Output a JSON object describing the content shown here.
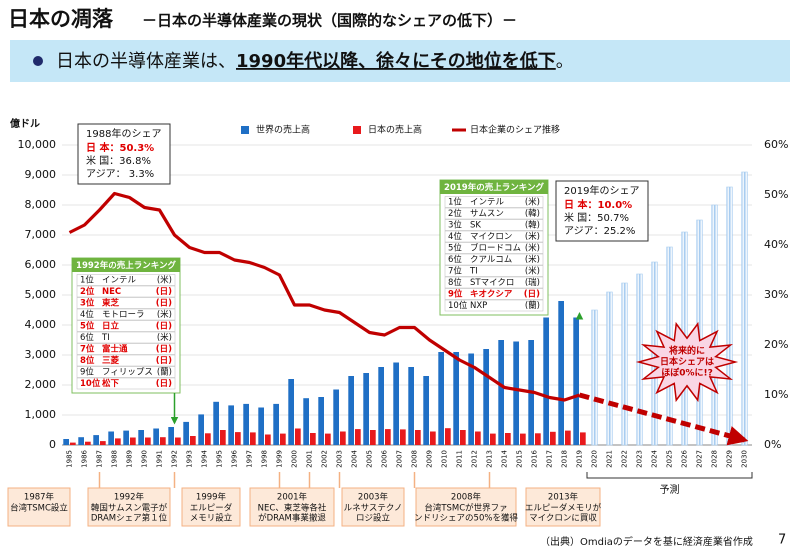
{
  "header": {
    "title": "日本の凋落",
    "subtitle": "－日本の半導体産業の現状（国際的なシェアの低下）－"
  },
  "headline": {
    "pre": "日本の半導体産業は、",
    "emphasis": "1990年代以降、徐々にその地位を低下",
    "post": "。"
  },
  "chart_data": {
    "type": "bar",
    "y_label": "億ドル",
    "categories": [
      "1985",
      "1986",
      "1987",
      "1988",
      "1989",
      "1990",
      "1991",
      "1992",
      "1993",
      "1994",
      "1995",
      "1996",
      "1997",
      "1998",
      "1999",
      "2000",
      "2001",
      "2002",
      "2003",
      "2004",
      "2005",
      "2006",
      "2007",
      "2008",
      "2009",
      "2010",
      "2011",
      "2012",
      "2013",
      "2014",
      "2015",
      "2016",
      "2017",
      "2018",
      "2019",
      "2020",
      "2021",
      "2022",
      "2023",
      "2024",
      "2025",
      "2026",
      "2027",
      "2028",
      "2029",
      "2030"
    ],
    "series": [
      {
        "name": "世界の売上高",
        "color": "#1f6fc5",
        "values": [
          200,
          260,
          330,
          450,
          480,
          500,
          550,
          600,
          770,
          1020,
          1440,
          1320,
          1370,
          1250,
          1370,
          2200,
          1560,
          1600,
          1850,
          2300,
          2400,
          2600,
          2750,
          2600,
          2300,
          3100,
          3100,
          3050,
          3200,
          3500,
          3450,
          3500,
          4250,
          4800,
          4250,
          4500,
          5100,
          5400,
          5700,
          6100,
          6600,
          7100,
          7500,
          8000,
          8600,
          9100
        ]
      },
      {
        "name": "日本の売上高",
        "color": "#e8191c",
        "values": [
          80,
          110,
          130,
          220,
          250,
          250,
          260,
          250,
          300,
          390,
          500,
          430,
          420,
          350,
          380,
          550,
          400,
          380,
          450,
          530,
          500,
          530,
          520,
          500,
          450,
          560,
          500,
          450,
          380,
          400,
          380,
          390,
          440,
          480,
          420,
          null,
          null,
          null,
          null,
          null,
          null,
          null,
          null,
          null,
          null,
          null
        ]
      },
      {
        "name": "日本企業のシェア推移",
        "type": "line",
        "axis": "y2",
        "color": "#c00000",
        "values": [
          42.5,
          44,
          47,
          50.3,
          49.5,
          47.5,
          47,
          42,
          39.5,
          38.5,
          38.5,
          37,
          36.5,
          35.5,
          34,
          28,
          28,
          27,
          26.5,
          24.5,
          22.5,
          22,
          23.5,
          23.5,
          21,
          19,
          17,
          15.5,
          13.5,
          11.5,
          11,
          10.5,
          9.5,
          9,
          10,
          null,
          null,
          null,
          null,
          null,
          null,
          null,
          null,
          null,
          null,
          null
        ]
      }
    ],
    "forecast": {
      "label": "予測",
      "from": "2020",
      "to": "2030",
      "color": "#a9cdf0"
    },
    "forecast_line": {
      "x": [
        "2019",
        "2030"
      ],
      "values": [
        10,
        1
      ],
      "color": "#c00000"
    },
    "ylim": [
      0,
      10000
    ],
    "yticks": [
      0,
      {
        "value": 1000,
        "label": "1,000"
      },
      {
        "value": 2000,
        "label": "2,000"
      },
      {
        "value": 3000,
        "label": "3,000"
      },
      {
        "value": 4000,
        "label": "4,000"
      },
      {
        "value": 5000,
        "label": "5,000"
      },
      {
        "value": 6000,
        "label": "6,000"
      },
      {
        "value": 7000,
        "label": "7,000"
      },
      {
        "value": 8000,
        "label": "8,000"
      },
      {
        "value": 9000,
        "label": "9,000"
      },
      {
        "value": 10000,
        "label": "10,000"
      }
    ],
    "y2lim": [
      0,
      60
    ],
    "y2ticks": [
      {
        "value": 0,
        "label": "0%"
      },
      {
        "value": 10,
        "label": "10%"
      },
      {
        "value": 20,
        "label": "20%"
      },
      {
        "value": 30,
        "label": "30%"
      },
      {
        "value": 40,
        "label": "40%"
      },
      {
        "value": 50,
        "label": "50%"
      },
      {
        "value": 60,
        "label": "60%"
      }
    ],
    "grid": true
  },
  "share_boxes": [
    {
      "title": "1988年のシェア",
      "rows": [
        "日 本：50.3%",
        "米 国：36.8%",
        "アジア：  3.3%"
      ]
    },
    {
      "title": "2019年のシェア",
      "rows": [
        "日 本：10.0%",
        "米 国：50.7%",
        "アジア：25.2%"
      ]
    }
  ],
  "rankings": [
    {
      "title": "1992年の売上ランキング",
      "rows": [
        {
          "rank": "1位",
          "name": "インテル",
          "country": "(米)"
        },
        {
          "rank": "2位",
          "name": "NEC",
          "country": "(日)",
          "color": "#e00000"
        },
        {
          "rank": "3位",
          "name": "東芝",
          "country": "(日)",
          "color": "#e00000"
        },
        {
          "rank": "4位",
          "name": "モトローラ",
          "country": "(米)"
        },
        {
          "rank": "5位",
          "name": "日立",
          "country": "(日)",
          "color": "#e00000"
        },
        {
          "rank": "6位",
          "name": "TI",
          "country": "(米)"
        },
        {
          "rank": "7位",
          "name": "富士通",
          "country": "(日)",
          "color": "#e00000"
        },
        {
          "rank": "8位",
          "name": "三菱",
          "country": "(日)",
          "color": "#e00000"
        },
        {
          "rank": "9位",
          "name": "フィリップス",
          "country": "(蘭)"
        },
        {
          "rank": "10位",
          "name": "松下",
          "country": "(日)",
          "color": "#e00000"
        }
      ]
    },
    {
      "title": "2019年の売上ランキング",
      "rows": [
        {
          "rank": "1位",
          "name": "インテル",
          "country": "(米)"
        },
        {
          "rank": "2位",
          "name": "サムスン",
          "country": "(韓)"
        },
        {
          "rank": "3位",
          "name": "SK",
          "country": "(韓)"
        },
        {
          "rank": "4位",
          "name": "マイクロン",
          "country": "(米)"
        },
        {
          "rank": "5位",
          "name": "ブロードコム",
          "country": "(米)"
        },
        {
          "rank": "6位",
          "name": "クアルコム",
          "country": "(米)"
        },
        {
          "rank": "7位",
          "name": "TI",
          "country": "(米)"
        },
        {
          "rank": "8位",
          "name": "STマイクロ",
          "country": "(瑞)"
        },
        {
          "rank": "9位",
          "name": "キオクシア",
          "country": "(日)",
          "color": "#e00000"
        },
        {
          "rank": "10位",
          "name": "NXP",
          "country": "(蘭)"
        }
      ]
    }
  ],
  "callout": [
    "将来的に",
    "日本シェアは",
    "ほぼ0%に!?"
  ],
  "events": [
    {
      "year": "1987年",
      "lines": [
        "台湾TSMC設立"
      ]
    },
    {
      "year": "1992年",
      "lines": [
        "韓国サムスン電子が",
        "DRAMシェア第１位"
      ]
    },
    {
      "year": "1999年",
      "lines": [
        "エルピーダ",
        "メモリ設立"
      ]
    },
    {
      "year": "2001年",
      "lines": [
        "NEC、東芝等各社",
        "がDRAM事業撤退"
      ]
    },
    {
      "year": "2003年",
      "lines": [
        "ルネサステクノ",
        "ロジ設立"
      ]
    },
    {
      "year": "2008年",
      "lines": [
        "台湾TSMCが世界ファ",
        "ンドリシェアの50%を獲得"
      ]
    },
    {
      "year": "2013年",
      "lines": [
        "エルピーダメモリが",
        "マイクロンに買収"
      ]
    }
  ],
  "source": "（出典）Omdiaのデータを基に経済産業省作成",
  "page_number": "7"
}
